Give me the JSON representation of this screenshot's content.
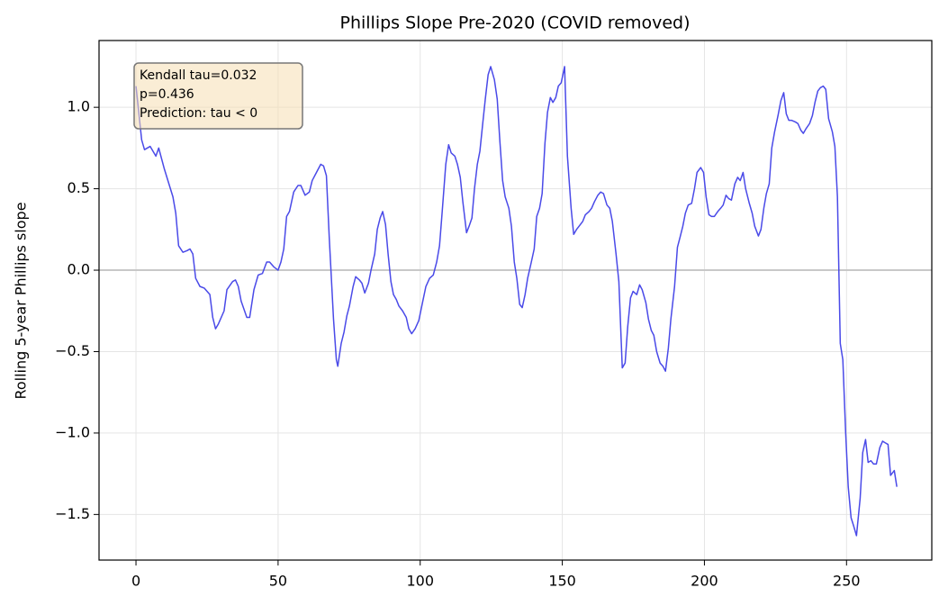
{
  "chart_data": {
    "type": "line",
    "title": "Phillips Slope Pre-2020 (COVID removed)",
    "y_label": "Rolling 5-year Phillips slope",
    "annotation": [
      "Kendall tau=0.032",
      "p=0.436",
      "Prediction: tau < 0"
    ],
    "reference_line": 0,
    "grid": true,
    "xlim": [
      -13,
      280
    ],
    "ylim": [
      -1.78,
      1.41
    ],
    "xticks": [
      0,
      50,
      100,
      150,
      200,
      250
    ],
    "yticks": [
      {
        "value": -1.5,
        "label": "−1.5"
      },
      {
        "value": -1,
        "label": "−1.0"
      },
      {
        "value": -0.5,
        "label": "−0.5"
      },
      {
        "value": 0,
        "label": "0.0"
      },
      {
        "value": 0.5,
        "label": "0.5"
      },
      {
        "value": 1,
        "label": "1.0"
      }
    ],
    "series": [
      {
        "color": "#4a4ae8",
        "x": [
          0,
          2,
          3,
          5,
          7,
          8,
          10,
          13,
          14,
          15,
          16.5,
          18,
          19,
          20,
          21,
          22.5,
          24,
          26,
          27,
          28,
          29,
          31,
          32,
          34,
          35,
          36,
          37,
          39,
          40,
          41.5,
          43,
          44.5,
          46,
          47,
          48.5,
          50,
          51,
          52,
          53,
          54,
          55.5,
          57,
          58,
          59.5,
          61,
          62,
          63.5,
          65,
          66,
          67,
          68,
          69.5,
          70.5,
          71,
          72.2,
          73.2,
          74.2,
          75.1,
          76.4,
          77.3,
          78.6,
          79.5,
          80.5,
          81.8,
          82.7,
          84,
          84.9,
          85.9,
          86.8,
          87.8,
          88.7,
          89.7,
          90.6,
          91.6,
          92.5,
          93.8,
          95.1,
          96,
          97,
          98.2,
          99.5,
          100.8,
          102,
          103.3,
          104.6,
          105.8,
          106.8,
          107.7,
          109,
          110,
          110.9,
          112.2,
          113.1,
          114.1,
          115,
          116.3,
          117.2,
          118.2,
          119.1,
          120.1,
          121,
          122,
          122.9,
          123.9,
          124.8,
          126.1,
          127.1,
          128,
          129,
          129.9,
          131.2,
          132.1,
          133.1,
          134,
          135,
          135.9,
          136.9,
          137.8,
          139.1,
          140.1,
          141,
          142,
          142.9,
          143.9,
          144.8,
          145.8,
          146.7,
          147.7,
          148.6,
          149.6,
          150.8,
          151.8,
          153.1,
          154,
          155,
          155.9,
          157.2,
          158.1,
          159.4,
          160.3,
          161.3,
          162.5,
          163.5,
          164.5,
          165.7,
          166.7,
          167.6,
          168.9,
          169.9,
          171.1,
          172.1,
          173,
          174,
          174.9,
          176.2,
          177.2,
          178.1,
          179.4,
          180.3,
          181.3,
          182.2,
          183.2,
          184.4,
          185.4,
          186.3,
          187.3,
          188.2,
          189.5,
          190.5,
          191.4,
          192.4,
          193.3,
          194.3,
          195.5,
          196.5,
          197.4,
          198.7,
          199.7,
          200.6,
          201.6,
          202.5,
          203.5,
          204.7,
          205.7,
          206.6,
          207.6,
          208.5,
          209.5,
          210.7,
          211.7,
          212.6,
          213.6,
          214.5,
          215.8,
          216.8,
          217.7,
          219,
          219.9,
          220.9,
          221.8,
          222.8,
          223.7,
          224.7,
          225.9,
          226.9,
          227.9,
          228.8,
          229.7,
          230.7,
          232,
          232.9,
          233.9,
          234.8,
          235.8,
          237,
          238,
          238.9,
          239.9,
          240.8,
          241.8,
          242.7,
          243.7,
          245,
          245.9,
          246.8,
          247.8,
          248.7,
          249.7,
          250.6,
          251.6,
          252.5,
          253.5,
          254.8,
          255.7,
          256.7,
          257.6,
          258.6,
          259.5,
          260.5,
          261.7,
          262.7,
          263.6,
          264.6,
          265.5,
          266.8,
          267.7
        ],
        "values": [
          1.13,
          0.8,
          0.74,
          0.76,
          0.7,
          0.75,
          0.62,
          0.45,
          0.35,
          0.15,
          0.11,
          0.12,
          0.13,
          0.1,
          -0.05,
          -0.1,
          -0.11,
          -0.15,
          -0.29,
          -0.36,
          -0.33,
          -0.25,
          -0.12,
          -0.07,
          -0.06,
          -0.1,
          -0.19,
          -0.29,
          -0.29,
          -0.12,
          -0.03,
          -0.02,
          0.05,
          0.05,
          0.02,
          0.0,
          0.05,
          0.13,
          0.33,
          0.36,
          0.48,
          0.52,
          0.52,
          0.46,
          0.48,
          0.55,
          0.6,
          0.65,
          0.64,
          0.58,
          0.2,
          -0.3,
          -0.55,
          -0.59,
          -0.45,
          -0.38,
          -0.28,
          -0.22,
          -0.1,
          -0.04,
          -0.06,
          -0.08,
          -0.14,
          -0.08,
          0.0,
          0.1,
          0.25,
          0.32,
          0.36,
          0.28,
          0.1,
          -0.07,
          -0.15,
          -0.18,
          -0.22,
          -0.25,
          -0.29,
          -0.36,
          -0.39,
          -0.36,
          -0.31,
          -0.2,
          -0.1,
          -0.05,
          -0.03,
          0.05,
          0.15,
          0.35,
          0.65,
          0.77,
          0.72,
          0.7,
          0.65,
          0.57,
          0.42,
          0.23,
          0.27,
          0.32,
          0.5,
          0.65,
          0.73,
          0.9,
          1.05,
          1.2,
          1.25,
          1.17,
          1.05,
          0.8,
          0.55,
          0.45,
          0.38,
          0.27,
          0.05,
          -0.05,
          -0.21,
          -0.23,
          -0.15,
          -0.05,
          0.05,
          0.13,
          0.33,
          0.38,
          0.47,
          0.78,
          0.97,
          1.06,
          1.03,
          1.06,
          1.13,
          1.15,
          1.25,
          0.7,
          0.38,
          0.22,
          0.25,
          0.27,
          0.3,
          0.34,
          0.36,
          0.38,
          0.42,
          0.46,
          0.48,
          0.47,
          0.4,
          0.38,
          0.3,
          0.1,
          -0.07,
          -0.6,
          -0.57,
          -0.35,
          -0.17,
          -0.13,
          -0.15,
          -0.09,
          -0.12,
          -0.2,
          -0.3,
          -0.37,
          -0.4,
          -0.5,
          -0.57,
          -0.59,
          -0.62,
          -0.48,
          -0.3,
          -0.1,
          0.14,
          0.2,
          0.27,
          0.35,
          0.4,
          0.41,
          0.5,
          0.6,
          0.63,
          0.6,
          0.45,
          0.34,
          0.33,
          0.33,
          0.36,
          0.38,
          0.4,
          0.46,
          0.44,
          0.43,
          0.53,
          0.57,
          0.55,
          0.6,
          0.5,
          0.41,
          0.35,
          0.27,
          0.21,
          0.25,
          0.38,
          0.47,
          0.53,
          0.75,
          0.85,
          0.95,
          1.04,
          1.09,
          0.96,
          0.92,
          0.92,
          0.91,
          0.9,
          0.86,
          0.84,
          0.87,
          0.9,
          0.95,
          1.03,
          1.1,
          1.12,
          1.13,
          1.11,
          0.93,
          0.85,
          0.76,
          0.45,
          -0.45,
          -0.55,
          -1.0,
          -1.33,
          -1.52,
          -1.57,
          -1.63,
          -1.4,
          -1.12,
          -1.04,
          -1.18,
          -1.17,
          -1.19,
          -1.19,
          -1.09,
          -1.05,
          -1.06,
          -1.07,
          -1.26,
          -1.23,
          -1.33
        ]
      }
    ]
  }
}
